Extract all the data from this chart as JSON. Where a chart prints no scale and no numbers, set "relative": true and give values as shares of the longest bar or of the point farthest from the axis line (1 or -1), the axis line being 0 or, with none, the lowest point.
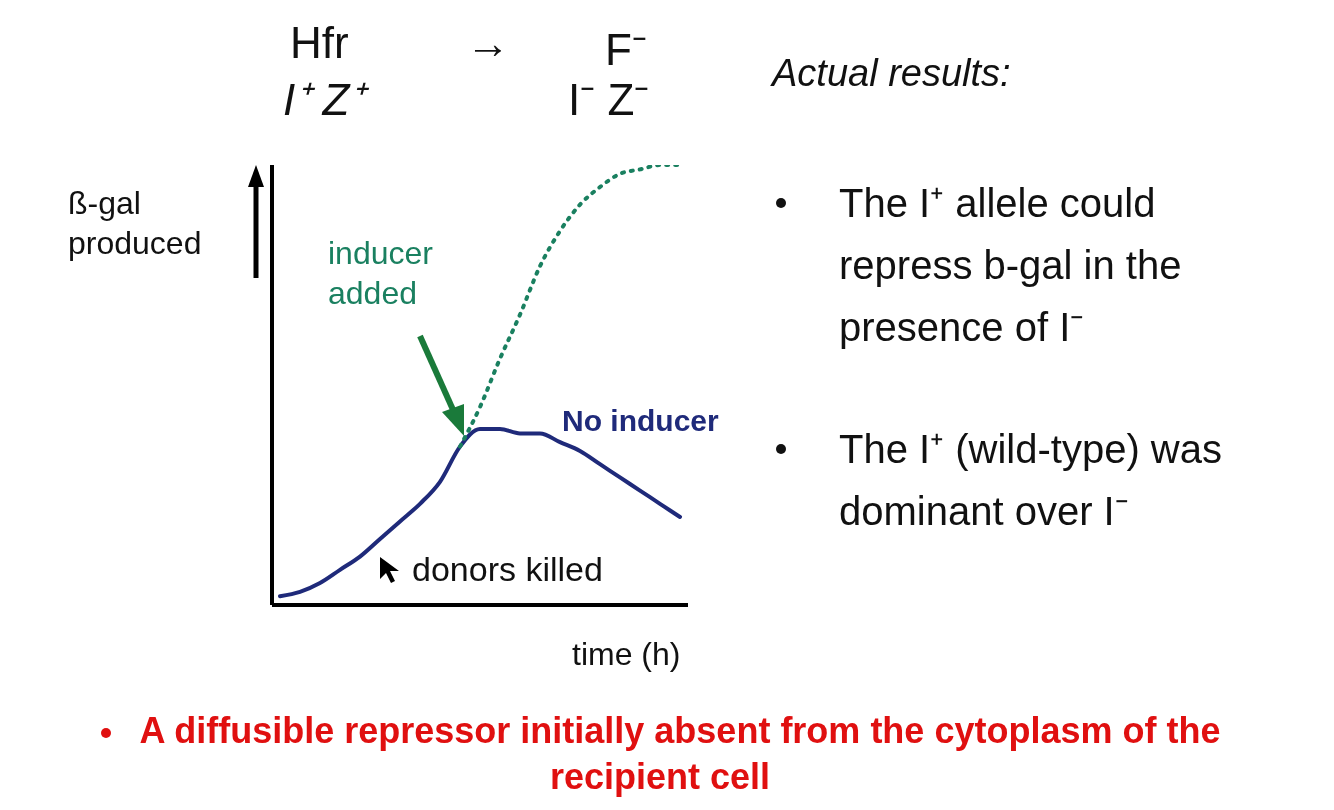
{
  "chart_data": {
    "type": "line",
    "relative": true,
    "xlabel": "time (h)",
    "ylabel": "ß-gal produced",
    "marker": "none",
    "categories": [
      null,
      null,
      null,
      null,
      null,
      null,
      null,
      null,
      null,
      null,
      null,
      null,
      null,
      null,
      null,
      null,
      null,
      null,
      null,
      null,
      null
    ],
    "series": [
      {
        "name": "No inducer",
        "color": "#1f2a7a",
        "line_style": "solid",
        "values": [
          0.02,
          0.03,
          0.05,
          0.08,
          0.11,
          0.15,
          0.19,
          0.23,
          0.28,
          0.36,
          0.4,
          0.4,
          0.39,
          0.39,
          0.37,
          0.35,
          0.32,
          0.29,
          0.26,
          0.23,
          0.2
        ]
      },
      {
        "color": "#1a8060",
        "line_style": "dotted",
        "values": [
          null,
          null,
          null,
          null,
          null,
          null,
          null,
          null,
          null,
          0.36,
          0.45,
          0.56,
          0.66,
          0.77,
          0.85,
          0.91,
          0.95,
          0.98,
          0.99,
          1.0,
          1.0
        ]
      }
    ],
    "annotations": [
      "Hfr",
      "→",
      "F⁻",
      "I⁺ Z⁺",
      "I⁻ Z⁻",
      "Actual results:",
      "The I⁺ allele could repress b-gal in the presence of I⁻",
      "The I⁺ (wild-type) was dominant over I⁻",
      "inducer added",
      "donors killed",
      "A diffusible repressor initially absent from the cytoplasm of the recipient cell"
    ]
  }
}
